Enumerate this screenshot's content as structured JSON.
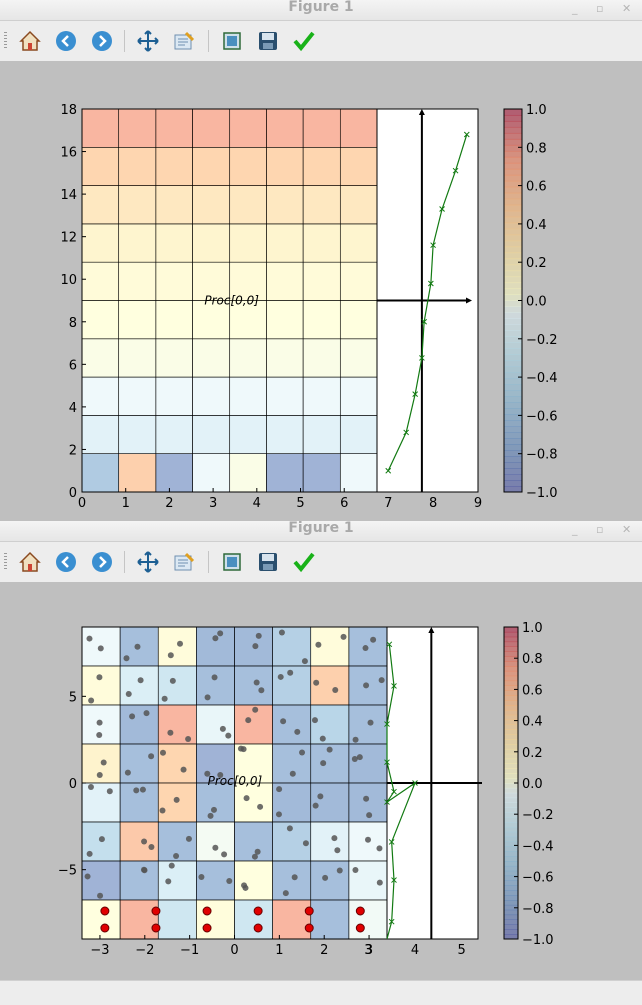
{
  "windows": [
    {
      "title": "Figure 1",
      "annotation": "Proc[0,0]",
      "toolbar": [
        "home",
        "back",
        "forward",
        "pan",
        "subplots",
        "zoom",
        "save",
        "apply"
      ],
      "chart_data": {
        "type": "heatmap",
        "x_ticks": [
          "0",
          "1",
          "2",
          "3",
          "4",
          "5",
          "6"
        ],
        "y_ticks": [
          "0",
          "2",
          "4",
          "6",
          "8",
          "10",
          "12",
          "14",
          "16",
          "18"
        ],
        "xlim": [
          0,
          6.75
        ],
        "ylim": [
          0,
          18
        ],
        "row_edges": [
          0,
          1.8,
          3.6,
          5.4,
          7.2,
          9,
          10.8,
          12.6,
          14.4,
          16.2,
          18
        ],
        "col_edges": [
          0,
          0.84,
          1.69,
          2.53,
          3.38,
          4.22,
          5.06,
          5.91,
          6.75
        ],
        "cells": [
          [
            -0.6,
            0.55,
            -0.8,
            -0.05,
            0.02,
            -0.8,
            -0.8,
            -0.05
          ],
          [
            -0.15,
            -0.15,
            -0.15,
            -0.15,
            -0.15,
            -0.15,
            -0.15,
            -0.15
          ],
          [
            -0.05,
            -0.05,
            -0.05,
            -0.05,
            -0.05,
            -0.05,
            -0.05,
            -0.05
          ],
          [
            0.02,
            0.02,
            0.02,
            0.02,
            0.02,
            0.02,
            0.02,
            0.02
          ],
          [
            0.05,
            0.05,
            0.05,
            0.05,
            0.05,
            0.05,
            0.05,
            0.05
          ],
          [
            0.1,
            0.1,
            0.1,
            0.1,
            0.1,
            0.1,
            0.1,
            0.1
          ],
          [
            0.18,
            0.18,
            0.18,
            0.18,
            0.18,
            0.18,
            0.18,
            0.18
          ],
          [
            0.32,
            0.32,
            0.32,
            0.32,
            0.32,
            0.32,
            0.32,
            0.32
          ],
          [
            0.5,
            0.5,
            0.5,
            0.5,
            0.5,
            0.5,
            0.5,
            0.5
          ],
          [
            0.75,
            0.75,
            0.75,
            0.75,
            0.75,
            0.75,
            0.75,
            0.75
          ]
        ],
        "side": {
          "x_ticks": [
            "7",
            "8",
            "9"
          ],
          "xlim": [
            6.75,
            9
          ],
          "axis_x": 7.75,
          "axis_y": 9,
          "line": {
            "x": [
              7.0,
              7.4,
              7.6,
              7.75,
              7.8,
              7.95,
              8.0,
              8.2,
              8.5,
              8.75
            ],
            "y": [
              1,
              2.8,
              4.6,
              6.3,
              8.0,
              9.8,
              11.6,
              13.3,
              15.1,
              16.8
            ]
          }
        },
        "colorbar": {
          "min": -1,
          "max": 1,
          "ticks": [
            "1.0",
            "0.8",
            "0.6",
            "0.4",
            "0.2",
            "0.0",
            "−0.2",
            "−0.4",
            "−0.6",
            "−0.8",
            "−1.0"
          ]
        }
      }
    },
    {
      "title": "Figure 1",
      "annotation": "Proc[0,0]",
      "toolbar": [
        "home",
        "back",
        "forward",
        "pan",
        "subplots",
        "zoom",
        "save",
        "apply"
      ],
      "chart_data": {
        "type": "heatmap",
        "x_ticks": [
          "−3",
          "−2",
          "−1",
          "0",
          "1",
          "2",
          "3"
        ],
        "y_ticks": [
          "5",
          "0",
          "−5"
        ],
        "y_tick_vals": [
          5,
          0,
          -5
        ],
        "xlim": [
          -3.4,
          3.4
        ],
        "ylim": [
          -9,
          9
        ],
        "cells": [
          [
            -0.05,
            -0.7,
            0.08,
            -0.75,
            -0.75,
            -0.55,
            0.08,
            -0.7
          ],
          [
            0.08,
            -0.2,
            -0.3,
            -0.7,
            -0.7,
            -0.55,
            0.55,
            -0.7
          ],
          [
            -0.05,
            -0.75,
            0.75,
            -0.1,
            0.75,
            -0.7,
            -0.5,
            -0.7
          ],
          [
            0.2,
            -0.7,
            0.5,
            -0.8,
            0.05,
            -0.7,
            -0.7,
            -0.75
          ],
          [
            -0.15,
            -0.7,
            0.5,
            -0.7,
            0.05,
            -0.75,
            -0.75,
            -0.75
          ],
          [
            -0.4,
            0.6,
            -0.7,
            -0.02,
            -0.7,
            -0.55,
            -0.15,
            -0.05
          ],
          [
            -0.8,
            -0.7,
            -0.2,
            -0.7,
            0.05,
            -0.7,
            -0.7,
            -0.1
          ],
          [
            0.05,
            0.75,
            -0.3,
            0.07,
            -0.3,
            0.75,
            -0.7,
            -0.03
          ]
        ],
        "side": {
          "x_ticks": [
            "3",
            "4",
            "5"
          ],
          "xlim": [
            3.4,
            5.35
          ],
          "axis_x": 4.35,
          "axis_y": 0,
          "line": {
            "x": [
              3.45,
              3.55,
              3.4,
              3.4,
              3.55,
              3.4,
              4.0,
              3.5,
              3.55,
              3.5,
              3.4
            ],
            "y": [
              8.0,
              5.6,
              3.4,
              1.2,
              -0.5,
              -1.1,
              0,
              -3.4,
              -5.6,
              -8.0,
              -9
            ]
          }
        },
        "colorbar": {
          "min": -1,
          "max": 1,
          "ticks": [
            "1.0",
            "0.8",
            "0.6",
            "0.4",
            "0.2",
            "0.0",
            "−0.2",
            "−0.4",
            "−0.6",
            "−0.8",
            "−1.0"
          ]
        }
      }
    }
  ]
}
